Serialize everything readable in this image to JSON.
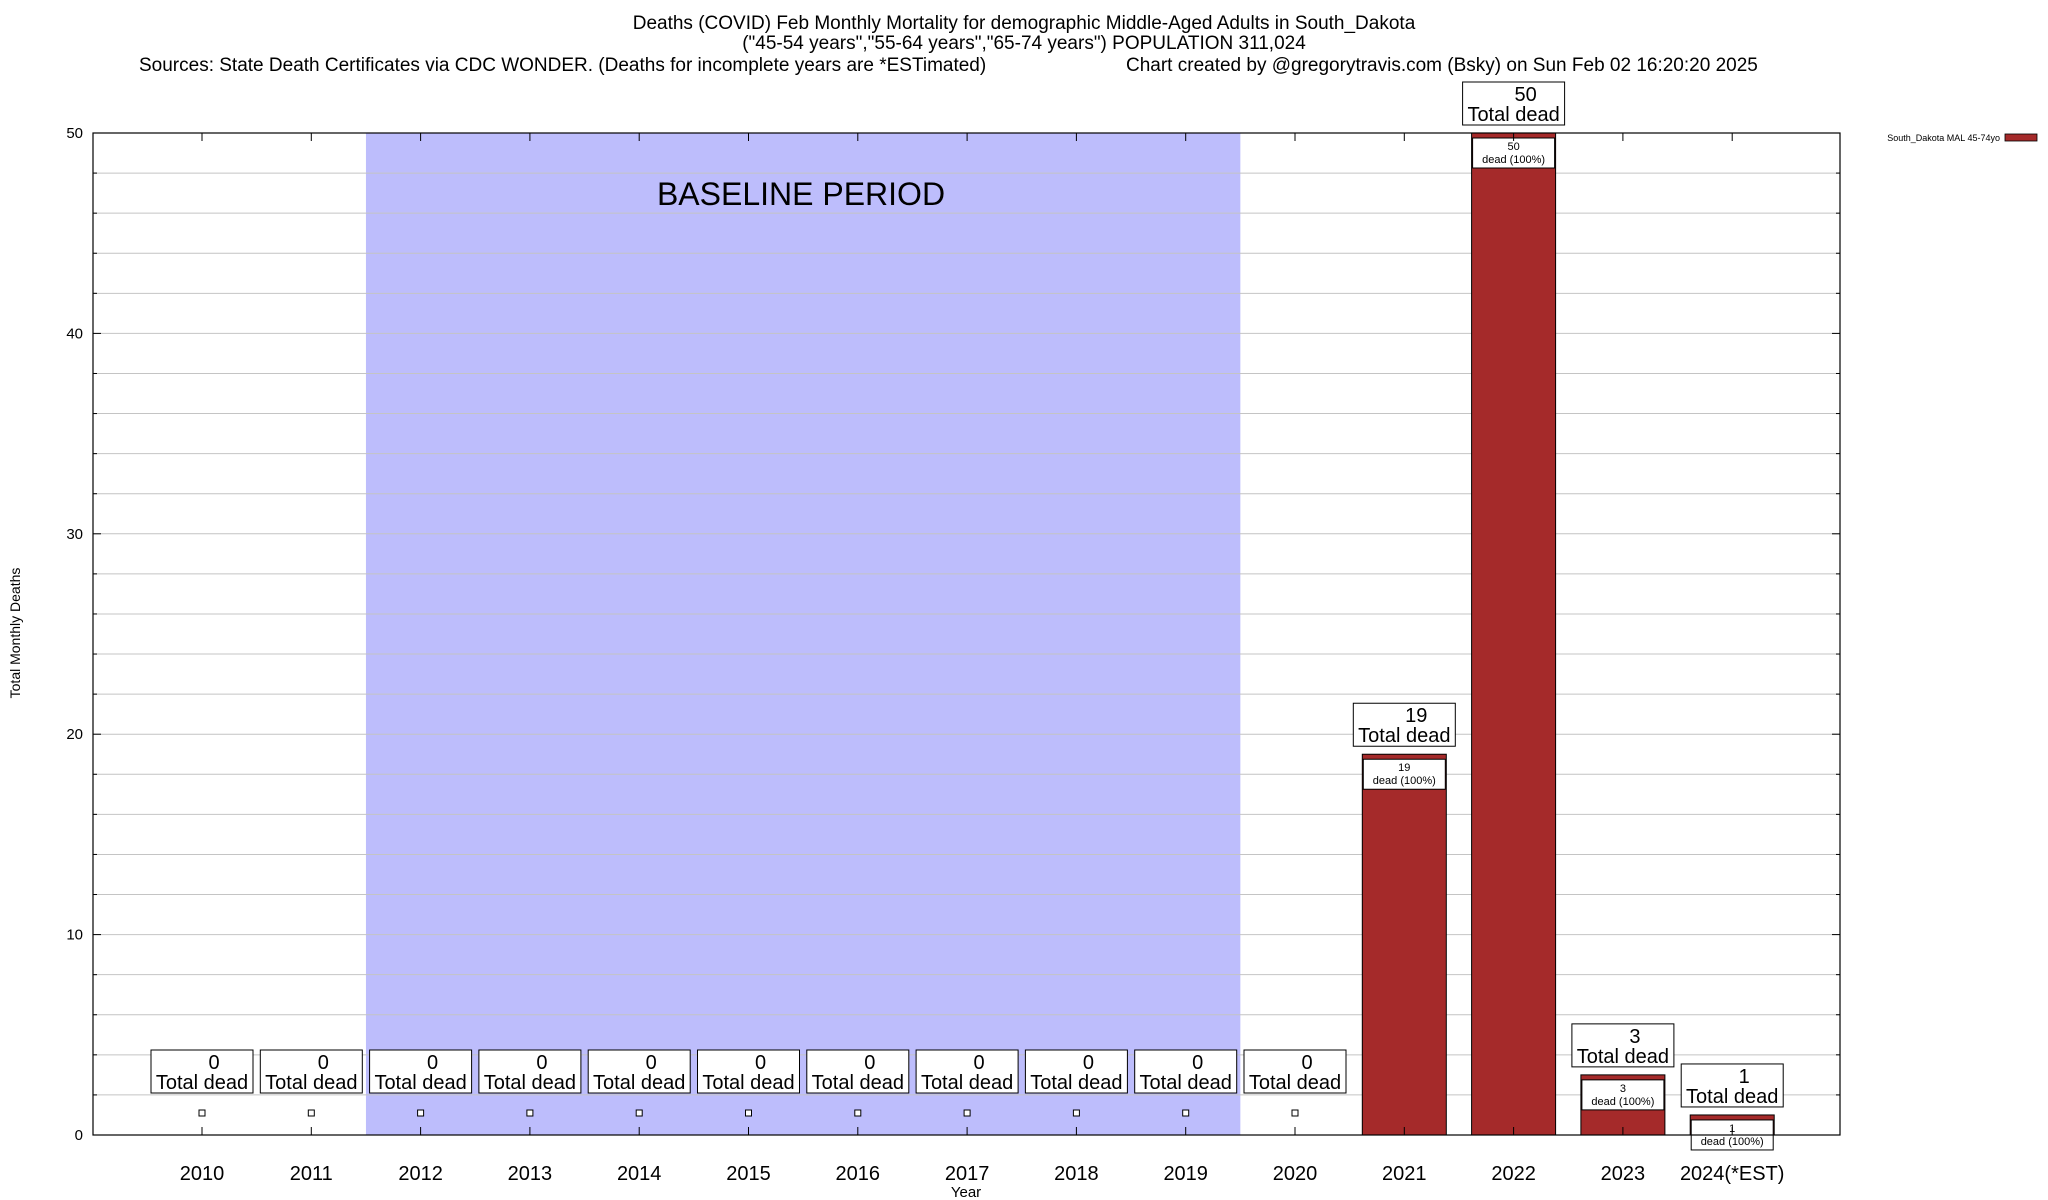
{
  "header": {
    "title_line1": "Deaths (COVID) Feb Monthly Mortality for demographic Middle-Aged Adults in South_Dakota",
    "title_line2": "(\"45-54 years\",\"55-64 years\",\"65-74 years\") POPULATION 311,024",
    "sources": "Sources: State Death Certificates via CDC WONDER. (Deaths for incomplete years are *ESTimated)",
    "credit": "Chart created by @gregorytravis.com (Bsky) on Sun Feb 02 16:20:20 2025"
  },
  "chart_data": {
    "type": "bar",
    "title": "Deaths (COVID) Feb Monthly Mortality for demographic Middle-Aged Adults in South_Dakota",
    "xlabel": "Year",
    "ylabel": "Total Monthly Deaths",
    "ylim": [
      0,
      50
    ],
    "yticks": [
      0,
      10,
      20,
      30,
      40,
      50
    ],
    "grid": true,
    "legend_position": "top-right",
    "categories": [
      "2010",
      "2011",
      "2012",
      "2013",
      "2014",
      "2015",
      "2016",
      "2017",
      "2018",
      "2019",
      "2020",
      "2021",
      "2022",
      "2023",
      "2024(*EST)"
    ],
    "series": [
      {
        "name": "South_Dakota MAL 45-74yo",
        "color": "#a52a2a",
        "values": [
          0,
          0,
          0,
          0,
          0,
          0,
          0,
          0,
          0,
          0,
          0,
          19,
          50,
          3,
          1
        ]
      }
    ],
    "total_label_suffix": "Total dead",
    "inner_label_suffix": "dead (100%)",
    "baseline": {
      "label": "BASELINE PERIOD",
      "from": "2012",
      "to": "2019",
      "color": "#bdbdfc"
    }
  }
}
